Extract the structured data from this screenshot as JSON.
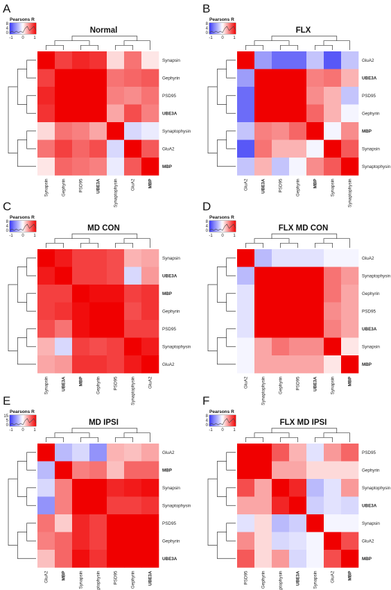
{
  "figure": {
    "bold_labels": [
      "UBE3A",
      "MBP"
    ],
    "color_low": "#3b3bf5",
    "color_mid": "#ffffff",
    "color_high": "#f00000"
  },
  "chart_data": [
    {
      "type": "heatmap",
      "panel": "A",
      "title": "Normal",
      "key_title": "Pearsons R",
      "key_x_ticks": [
        "-1",
        "0",
        "1"
      ],
      "key_y_ticks": [
        "0",
        "4",
        "8"
      ],
      "rows": [
        "Synapsin",
        "Gephyrin",
        "PSD95",
        "UBE3A",
        "Synaptophysin",
        "GluA2",
        "MBP"
      ],
      "cols": [
        "Synapsin",
        "Gephyrin",
        "PSD95",
        "UBE3A",
        "Synaptophysin",
        "GluA2",
        "MBP"
      ],
      "values": [
        [
          1.0,
          0.75,
          0.85,
          0.8,
          0.15,
          0.55,
          0.1
        ],
        [
          0.75,
          1.0,
          1.0,
          1.0,
          0.55,
          0.6,
          0.65
        ],
        [
          0.85,
          1.0,
          1.0,
          1.0,
          0.5,
          0.45,
          0.55
        ],
        [
          0.8,
          1.0,
          1.0,
          1.0,
          0.35,
          0.7,
          0.5
        ],
        [
          0.15,
          0.55,
          0.5,
          0.35,
          1.0,
          -0.2,
          -0.1
        ],
        [
          0.55,
          0.75,
          0.6,
          0.7,
          -0.2,
          1.0,
          0.65
        ],
        [
          0.1,
          0.6,
          0.55,
          0.5,
          -0.1,
          0.65,
          1.0
        ]
      ]
    },
    {
      "type": "heatmap",
      "panel": "B",
      "title": "FLX",
      "key_title": "Pearsons R",
      "key_x_ticks": [
        "-1",
        "0",
        "1"
      ],
      "key_y_ticks": [
        "0",
        "4",
        "8"
      ],
      "rows": [
        "GluA2",
        "UBE3A",
        "PSD95",
        "Gephyrin",
        "MBP",
        "Synapsin",
        "Synaptophysin"
      ],
      "cols": [
        "GluA2",
        "UBE3A",
        "PSD95",
        "Gephyrin",
        "MBP",
        "Synapsin",
        "Synaptophysin"
      ],
      "values": [
        [
          1.0,
          -0.5,
          -0.75,
          -0.75,
          -0.3,
          -0.85,
          -0.3
        ],
        [
          -0.5,
          1.0,
          1.0,
          1.0,
          0.5,
          0.55,
          0.3
        ],
        [
          -0.75,
          1.0,
          1.0,
          1.0,
          0.45,
          0.3,
          -0.3
        ],
        [
          -0.75,
          1.0,
          1.0,
          1.0,
          0.6,
          0.3,
          -0.05
        ],
        [
          -0.3,
          0.5,
          0.45,
          0.6,
          1.0,
          -0.05,
          0.45
        ],
        [
          -0.85,
          0.55,
          0.3,
          0.3,
          -0.05,
          1.0,
          0.65
        ],
        [
          -0.3,
          0.3,
          -0.3,
          -0.05,
          0.45,
          0.65,
          1.0
        ]
      ]
    },
    {
      "type": "heatmap",
      "panel": "C",
      "title": "MD CON",
      "key_title": "Pearsons R",
      "key_x_ticks": [
        "-1",
        "0",
        "1"
      ],
      "key_y_ticks": [
        "0",
        "4",
        "8"
      ],
      "rows": [
        "Synapsin",
        "UBE3A",
        "MBP",
        "Gephyrin",
        "PSD95",
        "Synaptophysin",
        "GluA2"
      ],
      "cols": [
        "Synapsin",
        "UBE3A",
        "MBP",
        "Gephyrin",
        "PSD95",
        "Synaptophysin",
        "GluA2"
      ],
      "values": [
        [
          1.0,
          0.9,
          0.75,
          0.75,
          0.7,
          0.3,
          0.35
        ],
        [
          0.9,
          1.0,
          0.75,
          0.75,
          0.7,
          -0.2,
          0.4
        ],
        [
          0.75,
          0.75,
          1.0,
          0.95,
          0.95,
          0.75,
          0.8
        ],
        [
          0.75,
          0.8,
          0.95,
          1.0,
          1.0,
          0.7,
          0.8
        ],
        [
          0.7,
          0.55,
          0.95,
          1.0,
          1.0,
          0.75,
          0.75
        ],
        [
          0.3,
          -0.2,
          0.75,
          0.7,
          0.75,
          1.0,
          0.9
        ],
        [
          0.35,
          0.4,
          0.8,
          0.8,
          0.75,
          0.9,
          1.0
        ]
      ]
    },
    {
      "type": "heatmap",
      "panel": "D",
      "title": "FLX MD CON",
      "key_title": "Pearsons R",
      "key_x_ticks": [
        "-1",
        "0",
        "1"
      ],
      "key_y_ticks": [
        "0",
        "4",
        "8"
      ],
      "rows": [
        "GluA2",
        "Synaptophysin",
        "Gephyrin",
        "PSD95",
        "UBE3A",
        "Synapsin",
        "MBP"
      ],
      "cols": [
        "GluA2",
        "Synaptophysin",
        "Gephyrin",
        "PSD95",
        "UBE3A",
        "Synapsin",
        "MBP"
      ],
      "values": [
        [
          1.0,
          -0.35,
          -0.15,
          -0.15,
          -0.15,
          -0.05,
          -0.05
        ],
        [
          -0.35,
          1.0,
          1.0,
          1.0,
          1.0,
          0.55,
          0.4
        ],
        [
          -0.15,
          1.0,
          1.0,
          1.0,
          1.0,
          0.55,
          0.35
        ],
        [
          -0.15,
          1.0,
          1.0,
          1.0,
          1.0,
          0.45,
          0.35
        ],
        [
          -0.15,
          1.0,
          1.0,
          1.0,
          1.0,
          0.5,
          0.35
        ],
        [
          -0.05,
          0.35,
          0.55,
          0.45,
          0.45,
          1.0,
          0.1
        ],
        [
          -0.05,
          0.35,
          0.35,
          0.35,
          0.35,
          0.1,
          1.0
        ]
      ]
    },
    {
      "type": "heatmap",
      "panel": "E",
      "title": "MD IPSI",
      "key_title": "Pearsons R",
      "key_x_ticks": [
        "-1",
        "0",
        "1"
      ],
      "key_y_ticks": [
        "0",
        "5",
        "15"
      ],
      "rows": [
        "GluA2",
        "MBP",
        "Synapsin",
        "Synaptophysin",
        "PSD95",
        "Gephyrin",
        "UBE3A"
      ],
      "cols": [
        "GluA2",
        "MBP",
        "Synapsin",
        "Synaptophysin",
        "PSD95",
        "Gephyrin",
        "UBE3A"
      ],
      "values": [
        [
          1.0,
          -0.35,
          -0.2,
          -0.55,
          0.3,
          0.25,
          0.35
        ],
        [
          -0.35,
          1.0,
          0.5,
          0.55,
          0.25,
          0.6,
          0.6
        ],
        [
          -0.2,
          0.5,
          1.0,
          1.0,
          0.85,
          0.9,
          0.95
        ],
        [
          -0.55,
          0.5,
          1.0,
          1.0,
          0.75,
          0.75,
          0.8
        ],
        [
          0.55,
          0.2,
          0.85,
          0.75,
          1.0,
          1.0,
          1.0
        ],
        [
          0.5,
          0.6,
          0.85,
          0.75,
          1.0,
          1.0,
          1.0
        ],
        [
          0.25,
          0.6,
          0.95,
          0.8,
          1.0,
          1.0,
          1.0
        ]
      ]
    },
    {
      "type": "heatmap",
      "panel": "F",
      "title": "FLX MD IPSI",
      "key_title": "Pearsons R",
      "key_x_ticks": [
        "-1",
        "0",
        "1"
      ],
      "key_y_ticks": [
        "0",
        "4",
        "8"
      ],
      "rows": [
        "PSD95",
        "Gephyrin",
        "Synaptophysin",
        "UBE3A",
        "Synapsin",
        "GluA2",
        "MBP"
      ],
      "cols": [
        "PSD95",
        "Gephyrin",
        "Synaptophysin",
        "UBE3A",
        "Synapsin",
        "GluA2",
        "MBP"
      ],
      "values": [
        [
          1.0,
          1.0,
          0.65,
          0.3,
          -0.15,
          0.4,
          0.6
        ],
        [
          1.0,
          1.0,
          0.35,
          0.35,
          0.15,
          0.15,
          0.15
        ],
        [
          0.7,
          0.35,
          1.0,
          0.85,
          -0.35,
          -0.15,
          0.4
        ],
        [
          0.35,
          0.35,
          0.85,
          1.0,
          -0.25,
          -0.15,
          -0.2
        ],
        [
          -0.15,
          0.15,
          -0.35,
          -0.25,
          1.0,
          -0.05,
          -0.05
        ],
        [
          0.45,
          0.15,
          -0.2,
          -0.15,
          -0.05,
          1.0,
          0.7
        ],
        [
          0.65,
          0.15,
          0.4,
          -0.2,
          -0.05,
          0.7,
          1.0
        ]
      ]
    }
  ]
}
